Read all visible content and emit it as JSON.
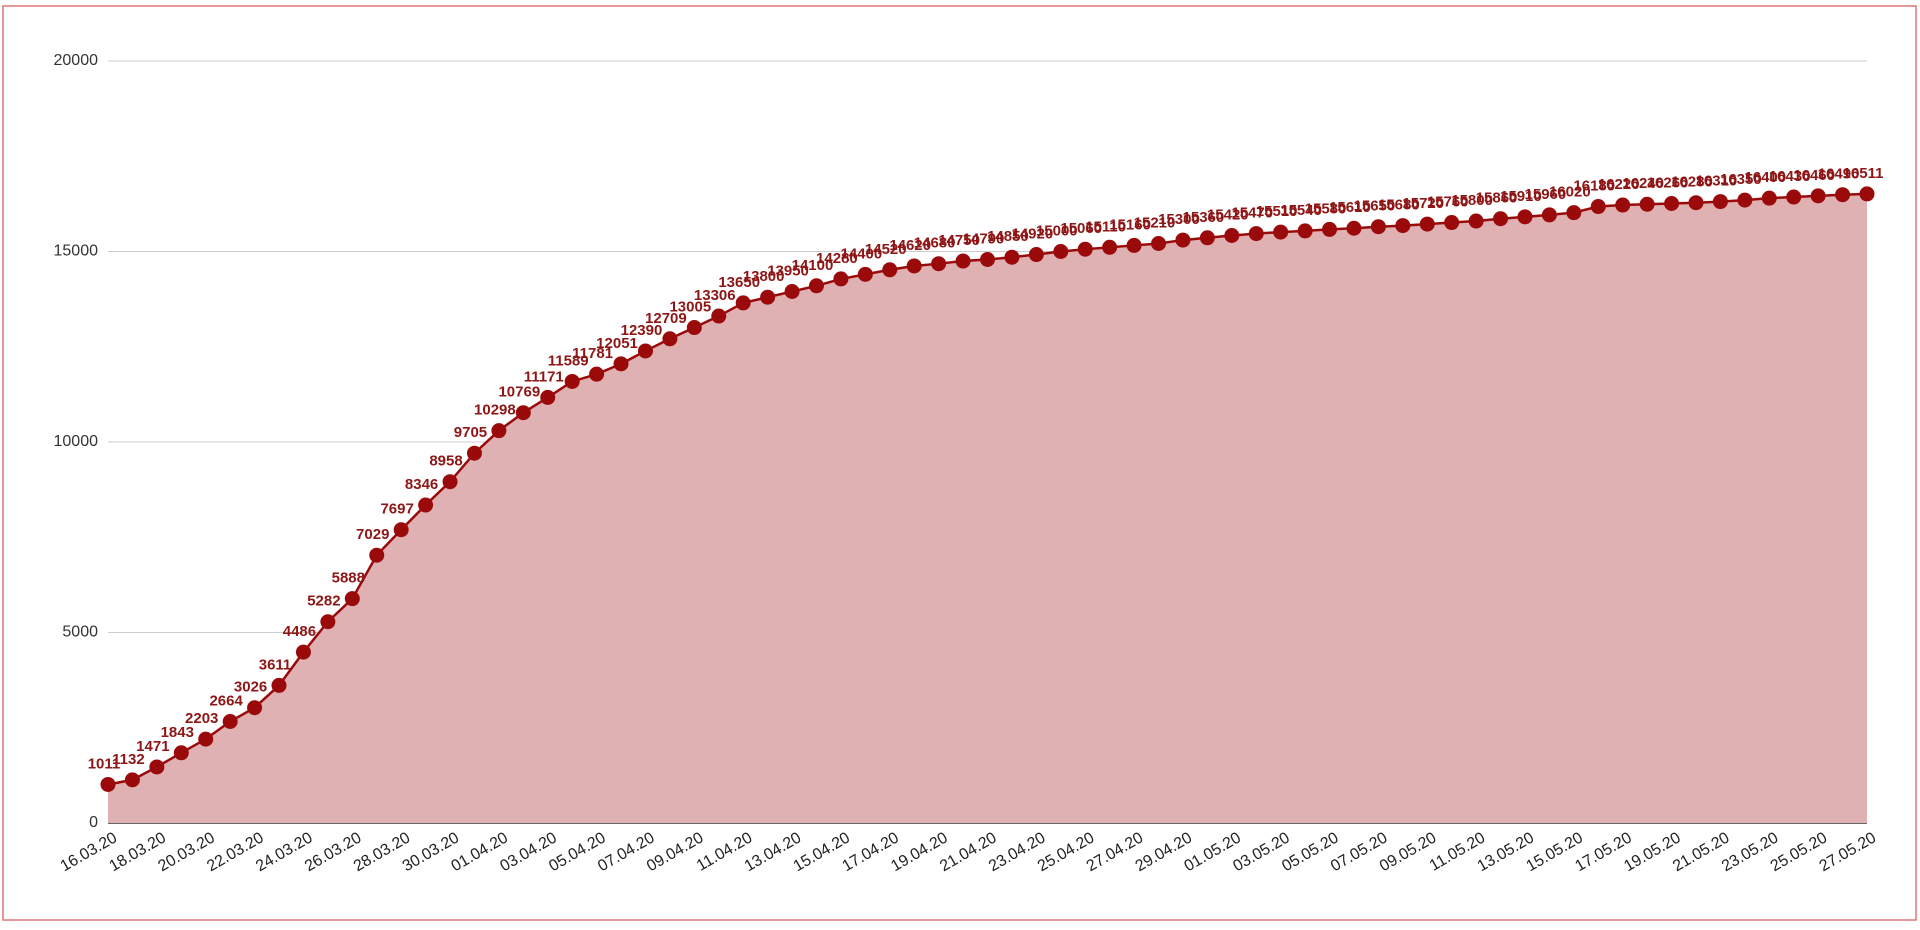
{
  "chart_data": {
    "type": "area",
    "categories": [
      "16.03.20",
      null,
      "18.03.20",
      null,
      "20.03.20",
      null,
      "22.03.20",
      null,
      "24.03.20",
      null,
      "26.03.20",
      null,
      "28.03.20",
      null,
      "30.03.20",
      null,
      "01.04.20",
      null,
      "03.04.20",
      null,
      "05.04.20",
      null,
      "07.04.20",
      null,
      "09.04.20",
      null,
      "11.04.20",
      null,
      "13.04.20",
      null,
      "15.04.20",
      null,
      "17.04.20",
      null,
      "19.04.20",
      null,
      "21.04.20",
      null,
      "23.04.20",
      null,
      "25.04.20",
      null,
      "27.04.20",
      null,
      "29.04.20",
      null,
      "01.05.20",
      null,
      "03.05.20",
      null,
      "05.05.20",
      null,
      "07.05.20",
      null,
      "09.05.20",
      null,
      "11.05.20",
      null,
      "13.05.20",
      null,
      "15.05.20",
      null,
      "17.05.20",
      null,
      "19.05.20",
      null,
      "21.05.20",
      null,
      "23.05.20",
      null,
      "25.05.20",
      null,
      "27.05.20"
    ],
    "values": [
      1011,
      1132,
      1471,
      1843,
      2203,
      2664,
      3026,
      3611,
      4486,
      5282,
      5888,
      7029,
      7697,
      8346,
      8958,
      9705,
      10298,
      10769,
      11171,
      11589,
      11781,
      12051,
      12390,
      12709,
      13005,
      13306,
      13650,
      13800,
      13950,
      14100,
      14280,
      14400,
      14520,
      14620,
      14680,
      14750,
      14790,
      14850,
      14920,
      15000,
      15060,
      15110,
      15160,
      15210,
      15300,
      15360,
      15420,
      15470,
      15510,
      15540,
      15580,
      15610,
      15650,
      15680,
      15720,
      15760,
      15800,
      15860,
      15910,
      15960,
      16020,
      16180,
      16220,
      16240,
      16260,
      16280,
      16310,
      16350,
      16400,
      16430,
      16460,
      16490,
      16511
    ],
    "color": "#9b0a0a",
    "fill_color": "#e0b1b2",
    "ylim": [
      0,
      20000
    ],
    "yticks": [
      0,
      5000,
      10000,
      15000,
      20000
    ],
    "grid": true
  }
}
